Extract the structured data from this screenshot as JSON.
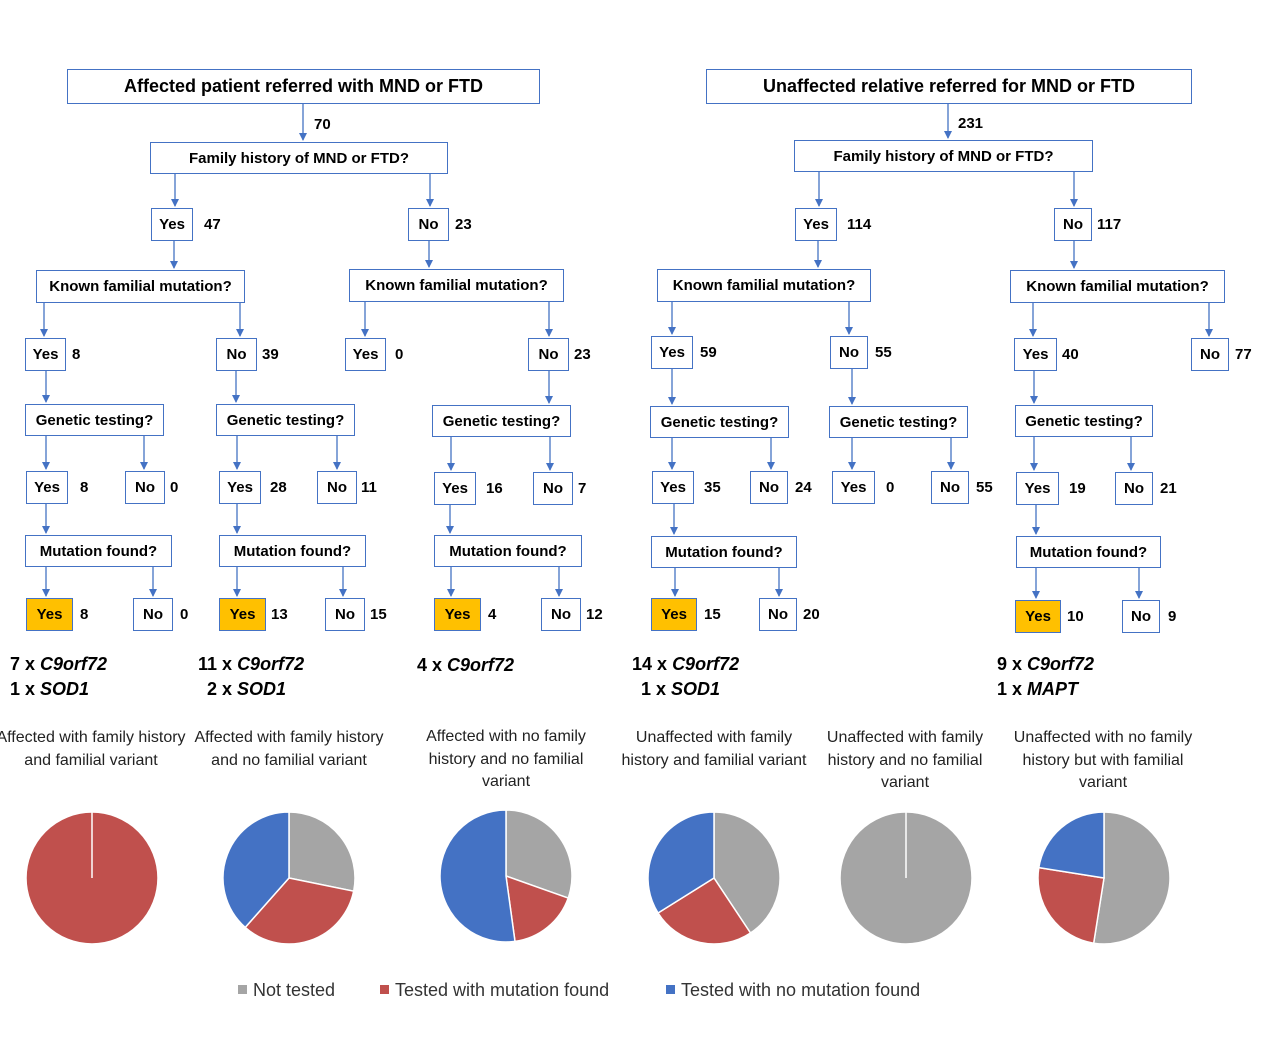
{
  "left_tree": {
    "root": "Affected patient referred with MND or FTD",
    "root_count": "70",
    "q_history": "Family history of MND or FTD?",
    "hist_yes": {
      "label": "Yes",
      "count": "47"
    },
    "hist_no": {
      "label": "No",
      "count": "23"
    },
    "a": {
      "q_known": "Known familial mutation?",
      "known_yes": {
        "label": "Yes",
        "count": "8"
      },
      "known_no": {
        "label": "No",
        "count": "39"
      },
      "ky_q_genetic": "Genetic testing?",
      "ky_gt_yes": {
        "label": "Yes",
        "count": "8"
      },
      "ky_gt_no": {
        "label": "No",
        "count": "0"
      },
      "ky_q_mut": "Mutation found?",
      "ky_mf_yes": {
        "label": "Yes",
        "count": "8"
      },
      "ky_mf_no": {
        "label": "No",
        "count": "0"
      },
      "kn_q_genetic": "Genetic testing?",
      "kn_gt_yes": {
        "label": "Yes",
        "count": "28"
      },
      "kn_gt_no": {
        "label": "No",
        "count": "11"
      },
      "kn_q_mut": "Mutation found?",
      "kn_mf_yes": {
        "label": "Yes",
        "count": "13"
      },
      "kn_mf_no": {
        "label": "No",
        "count": "15"
      }
    },
    "b": {
      "q_known": "Known familial mutation?",
      "known_yes": {
        "label": "Yes",
        "count": "0"
      },
      "known_no": {
        "label": "No",
        "count": "23"
      },
      "q_genetic": "Genetic testing?",
      "gt_yes": {
        "label": "Yes",
        "count": "16"
      },
      "gt_no": {
        "label": "No",
        "count": "7"
      },
      "q_mut": "Mutation found?",
      "mf_yes": {
        "label": "Yes",
        "count": "4"
      },
      "mf_no": {
        "label": "No",
        "count": "12"
      }
    }
  },
  "right_tree": {
    "root": "Unaffected relative referred for MND or FTD",
    "root_count": "231",
    "q_history": "Family history of MND or FTD?",
    "hist_yes": {
      "label": "Yes",
      "count": "114"
    },
    "hist_no": {
      "label": "No",
      "count": "117"
    },
    "c": {
      "q_known": "Known familial mutation?",
      "known_yes": {
        "label": "Yes",
        "count": "59"
      },
      "known_no": {
        "label": "No",
        "count": "55"
      },
      "ky_q_genetic": "Genetic testing?",
      "ky_gt_yes": {
        "label": "Yes",
        "count": "35"
      },
      "ky_gt_no": {
        "label": "No",
        "count": "24"
      },
      "ky_q_mut": "Mutation found?",
      "ky_mf_yes": {
        "label": "Yes",
        "count": "15"
      },
      "ky_mf_no": {
        "label": "No",
        "count": "20"
      },
      "kn_q_genetic": "Genetic testing?",
      "kn_gt_yes": {
        "label": "Yes",
        "count": "0"
      },
      "kn_gt_no": {
        "label": "No",
        "count": "55"
      }
    },
    "d": {
      "q_known": "Known familial mutation?",
      "known_yes": {
        "label": "Yes",
        "count": "40"
      },
      "known_no": {
        "label": "No",
        "count": "77"
      },
      "q_genetic": "Genetic testing?",
      "gt_yes": {
        "label": "Yes",
        "count": "19"
      },
      "gt_no": {
        "label": "No",
        "count": "21"
      },
      "q_mut": "Mutation found?",
      "mf_yes": {
        "label": "Yes",
        "count": "10"
      },
      "mf_no": {
        "label": "No",
        "count": "9"
      }
    }
  },
  "mutations": {
    "m1": {
      "l1_num": "7 x",
      "l1_gene": "C9orf72",
      "l2_num": "1 x",
      "l2_gene": "SOD1"
    },
    "m2": {
      "l1_num": "11 x",
      "l1_gene": "C9orf72",
      "l2_num": "2 x",
      "l2_gene": "SOD1"
    },
    "m3": {
      "l1_num": "4 x",
      "l1_gene": "C9orf72"
    },
    "m4": {
      "l1_num": "14 x",
      "l1_gene": "C9orf72",
      "l2_num": "1 x",
      "l2_gene": "SOD1"
    },
    "m6": {
      "l1_num": "9 x",
      "l1_gene": "C9orf72",
      "l2_num": "1 x",
      "l2_gene": "MAPT"
    }
  },
  "colors": {
    "box_border": "#4472c4",
    "highlight": "#ffc000",
    "not_tested": "#a5a5a5",
    "mutation_found": "#c0504d",
    "no_mutation": "#4472c4"
  },
  "legend": [
    "Not tested",
    "Tested with mutation found",
    "Tested with no mutation found"
  ],
  "chart_data": [
    {
      "type": "pie",
      "title": "Affected with family history and familial variant",
      "categories": [
        "Not tested",
        "Tested with mutation found",
        "Tested with no mutation found"
      ],
      "values": [
        0,
        8,
        0
      ]
    },
    {
      "type": "pie",
      "title": "Affected with family history and no familial variant",
      "categories": [
        "Not tested",
        "Tested with mutation found",
        "Tested with no mutation found"
      ],
      "values": [
        11,
        13,
        15
      ]
    },
    {
      "type": "pie",
      "title": "Affected with no family history and no familial variant",
      "categories": [
        "Not tested",
        "Tested with mutation found",
        "Tested with no mutation found"
      ],
      "values": [
        7,
        4,
        12
      ]
    },
    {
      "type": "pie",
      "title": "Unaffected with family history and familial variant",
      "categories": [
        "Not tested",
        "Tested with mutation found",
        "Tested with no mutation found"
      ],
      "values": [
        24,
        15,
        20
      ]
    },
    {
      "type": "pie",
      "title": "Unaffected with family history and no familial variant",
      "categories": [
        "Not tested",
        "Tested with mutation found",
        "Tested with no mutation found"
      ],
      "values": [
        55,
        0,
        0
      ]
    },
    {
      "type": "pie",
      "title": "Unaffected with no family history but with familial variant",
      "categories": [
        "Not tested",
        "Tested with mutation found",
        "Tested with no mutation found"
      ],
      "values": [
        21,
        10,
        9
      ]
    }
  ]
}
